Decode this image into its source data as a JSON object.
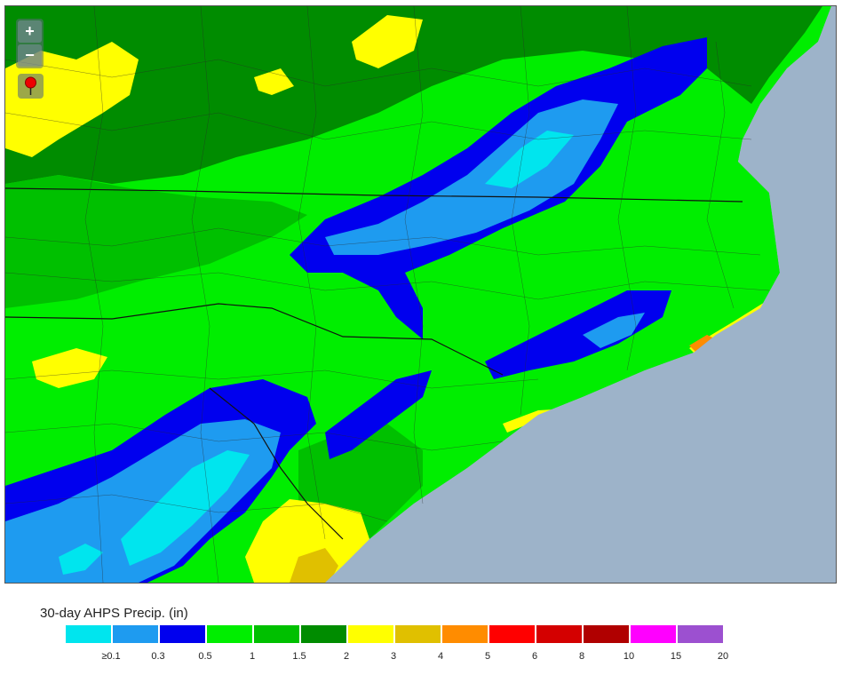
{
  "map": {
    "zoom_in_label": "+",
    "zoom_out_label": "−",
    "colors": {
      "ocean": "#9db3c9",
      "green": "#00ee00",
      "mid_green": "#00c000",
      "dark_green": "#008c00",
      "yellow": "#ffff00",
      "gold": "#e0c000",
      "orange": "#ff8c00",
      "blue": "#0000ee",
      "med_blue": "#1e9bf0",
      "cyan": "#00e5ee"
    }
  },
  "legend": {
    "title": "30-day AHPS Precip. (in)",
    "bins": [
      {
        "color": "#00e5ee"
      },
      {
        "color": "#1e9bf0"
      },
      {
        "color": "#0000ee"
      },
      {
        "color": "#00ee00"
      },
      {
        "color": "#00c000"
      },
      {
        "color": "#008c00"
      },
      {
        "color": "#ffff00"
      },
      {
        "color": "#e0c000"
      },
      {
        "color": "#ff8c00"
      },
      {
        "color": "#ff0000"
      },
      {
        "color": "#d40000"
      },
      {
        "color": "#b00000"
      },
      {
        "color": "#ff00ff"
      },
      {
        "color": "#9c50d0"
      }
    ],
    "ticks": [
      "≥0.1",
      "0.3",
      "0.5",
      "1",
      "1.5",
      "2",
      "3",
      "4",
      "5",
      "6",
      "8",
      "10",
      "15",
      "20"
    ]
  }
}
